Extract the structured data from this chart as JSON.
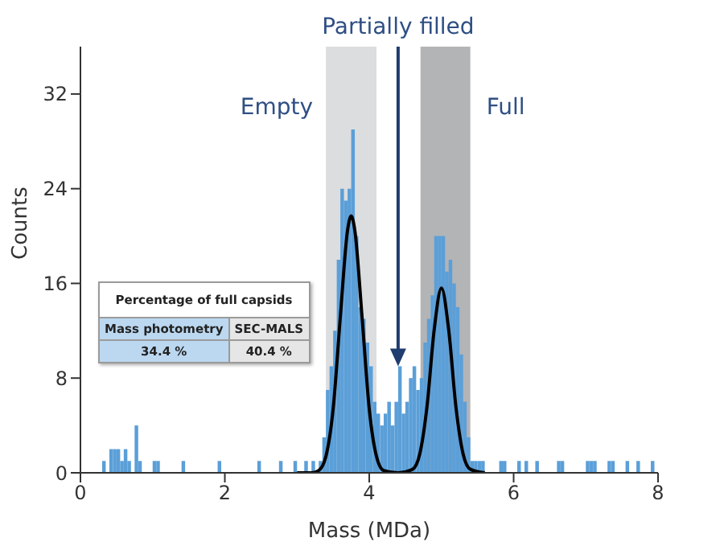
{
  "chart_data": {
    "type": "histogram",
    "xlabel": "Mass (MDa)",
    "ylabel": "Counts",
    "bins": [
      0.25,
      0.3,
      0.35,
      0.4,
      0.45,
      0.5,
      0.55,
      0.6,
      0.65,
      0.7,
      0.75,
      0.8,
      0.85,
      0.9,
      0.95,
      1,
      1.05,
      1.1,
      1.15,
      1.2,
      1.25,
      1.3,
      1.35,
      1.4,
      1.45,
      1.5,
      1.55,
      1.6,
      1.65,
      1.7,
      1.75,
      1.8,
      1.85,
      1.9,
      1.95,
      2,
      2.05,
      2.1,
      2.15,
      2.2,
      2.25,
      2.3,
      2.35,
      2.4,
      2.45,
      2.5,
      2.55,
      2.6,
      2.65,
      2.7,
      2.75,
      2.8,
      2.85,
      2.9,
      2.95,
      3,
      3.05,
      3.1,
      3.15,
      3.2,
      3.25,
      3.3,
      3.35,
      3.4,
      3.45,
      3.5,
      3.55,
      3.6,
      3.65,
      3.7,
      3.75,
      3.8,
      3.85,
      3.9,
      3.95,
      4,
      4.05,
      4.1,
      4.15,
      4.2,
      4.25,
      4.3,
      4.35,
      4.4,
      4.45,
      4.5,
      4.55,
      4.6,
      4.65,
      4.7,
      4.75,
      4.8,
      4.85,
      4.9,
      4.95,
      5,
      5.05,
      5.1,
      5.15,
      5.2,
      5.25,
      5.3,
      5.35,
      5.4,
      5.45,
      5.5,
      5.55,
      5.6,
      5.65,
      5.7,
      5.75,
      5.8,
      5.85,
      5.9,
      5.95,
      6,
      6.05,
      6.1,
      6.15,
      6.2,
      6.25,
      6.3,
      6.35,
      6.4,
      6.45,
      6.5,
      6.55,
      6.6,
      6.65,
      6.7,
      6.75,
      6.8,
      6.85,
      6.9,
      6.95,
      7,
      7.05,
      7.1,
      7.15,
      7.2,
      7.25,
      7.3,
      7.35,
      7.4,
      7.45,
      7.5,
      7.55,
      7.6,
      7.65,
      7.7,
      7.75,
      7.8,
      7.85,
      7.9,
      7.95,
      8
    ],
    "values": [
      0,
      1,
      0,
      2,
      2,
      2,
      1,
      2,
      1,
      0,
      4,
      1,
      0,
      0,
      0,
      1,
      1,
      0,
      0,
      0,
      0,
      0,
      0,
      1,
      0,
      0,
      0,
      0,
      0,
      0,
      0,
      0,
      0,
      1,
      0,
      0,
      0,
      0,
      0,
      0,
      0,
      0,
      0,
      0,
      1,
      0,
      0,
      0,
      0,
      0,
      1,
      0,
      0,
      0,
      1,
      0,
      0,
      1,
      0,
      1,
      0,
      1,
      3,
      7,
      9,
      12,
      18,
      24,
      23,
      24,
      29,
      20,
      14,
      13,
      11,
      9,
      6,
      5,
      4,
      5,
      6,
      4,
      6,
      9,
      5,
      6,
      8,
      9,
      7,
      8,
      11,
      13,
      15,
      20,
      20,
      20,
      17,
      18,
      16,
      14,
      10,
      6,
      3,
      1,
      1,
      1,
      1,
      0,
      0,
      0,
      0,
      1,
      1,
      0,
      0,
      0,
      1,
      0,
      1,
      0,
      0,
      1,
      0,
      0,
      0,
      0,
      0,
      1,
      1,
      0,
      0,
      0,
      0,
      0,
      0,
      1,
      1,
      1,
      0,
      0,
      0,
      1,
      1,
      0,
      0,
      0,
      1,
      0,
      0,
      1,
      0,
      0,
      0,
      1,
      0
    ],
    "color": "#5b9fd8",
    "series": [
      {
        "type": "line",
        "color": "#000000",
        "x": [
          3,
          3.2,
          3.3,
          3.4,
          3.5,
          3.6,
          3.7,
          3.75,
          3.8,
          3.9,
          4,
          4.1,
          4.2,
          4.4,
          4.6,
          4.7,
          4.8,
          4.9,
          5,
          5.1,
          5.2,
          5.3,
          5.4,
          5.6
        ],
        "values": [
          0,
          0,
          0.2,
          1.4,
          5.4,
          13.2,
          20.5,
          21.7,
          20.5,
          13.2,
          5.4,
          1.4,
          0.2,
          0,
          0.3,
          1.6,
          5.6,
          12.1,
          15.6,
          12.1,
          5.6,
          1.6,
          0.3,
          0
        ]
      }
    ],
    "xlim": [
      0,
      8
    ],
    "xticks": [
      0,
      2,
      4,
      6,
      8
    ],
    "ylim": [
      0,
      36
    ],
    "yticks": [
      0,
      8,
      16,
      24,
      32
    ],
    "bands": [
      {
        "axis": "x",
        "from": 3.4,
        "to": 4.1,
        "label": "Empty",
        "color": "#dcdddf"
      },
      {
        "axis": "x",
        "from": 4.71,
        "to": 5.4,
        "label": "Full",
        "color": "#b3b4b6"
      }
    ],
    "annotations": [
      {
        "text": "Partially filled",
        "x": 4.4,
        "y": 9
      },
      "Percentage of full capsids",
      "Mass photometry",
      "SEC-MALS",
      "34.4 %",
      "40.4 %"
    ]
  }
}
